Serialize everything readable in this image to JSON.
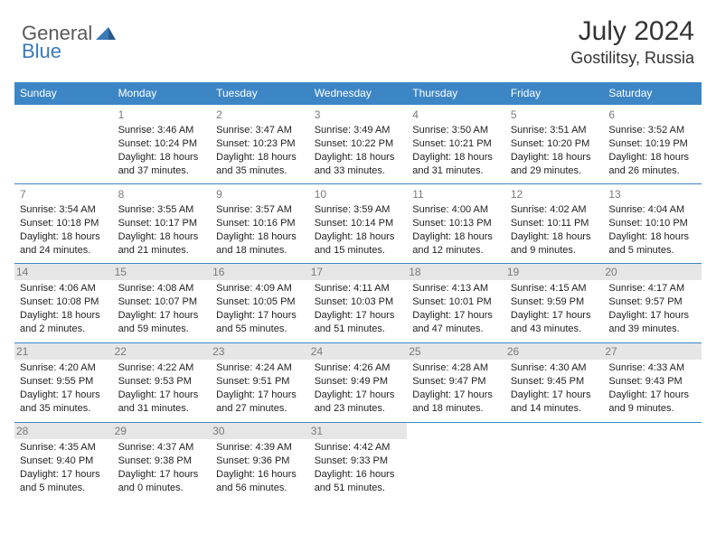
{
  "logo": {
    "part1": "General",
    "part2": "Blue"
  },
  "title": "July 2024",
  "location": "Gostilitsy, Russia",
  "colors": {
    "header_bg": "#3d86c6",
    "header_text": "#ffffff",
    "logo_gray": "#5a5a5a",
    "logo_blue": "#3a7ab8",
    "border": "#3d86c6",
    "daynum": "#7a7a7a",
    "body_text": "#222222",
    "highlight_bg": "#e6e6e6"
  },
  "weekday_headers": [
    "Sunday",
    "Monday",
    "Tuesday",
    "Wednesday",
    "Thursday",
    "Friday",
    "Saturday"
  ],
  "weeks": [
    [
      null,
      {
        "d": "1",
        "sr": "3:46 AM",
        "ss": "10:24 PM",
        "dl": "18 hours and 37 minutes."
      },
      {
        "d": "2",
        "sr": "3:47 AM",
        "ss": "10:23 PM",
        "dl": "18 hours and 35 minutes."
      },
      {
        "d": "3",
        "sr": "3:49 AM",
        "ss": "10:22 PM",
        "dl": "18 hours and 33 minutes."
      },
      {
        "d": "4",
        "sr": "3:50 AM",
        "ss": "10:21 PM",
        "dl": "18 hours and 31 minutes."
      },
      {
        "d": "5",
        "sr": "3:51 AM",
        "ss": "10:20 PM",
        "dl": "18 hours and 29 minutes."
      },
      {
        "d": "6",
        "sr": "3:52 AM",
        "ss": "10:19 PM",
        "dl": "18 hours and 26 minutes."
      }
    ],
    [
      {
        "d": "7",
        "sr": "3:54 AM",
        "ss": "10:18 PM",
        "dl": "18 hours and 24 minutes."
      },
      {
        "d": "8",
        "sr": "3:55 AM",
        "ss": "10:17 PM",
        "dl": "18 hours and 21 minutes."
      },
      {
        "d": "9",
        "sr": "3:57 AM",
        "ss": "10:16 PM",
        "dl": "18 hours and 18 minutes."
      },
      {
        "d": "10",
        "sr": "3:59 AM",
        "ss": "10:14 PM",
        "dl": "18 hours and 15 minutes."
      },
      {
        "d": "11",
        "sr": "4:00 AM",
        "ss": "10:13 PM",
        "dl": "18 hours and 12 minutes."
      },
      {
        "d": "12",
        "sr": "4:02 AM",
        "ss": "10:11 PM",
        "dl": "18 hours and 9 minutes."
      },
      {
        "d": "13",
        "sr": "4:04 AM",
        "ss": "10:10 PM",
        "dl": "18 hours and 5 minutes."
      }
    ],
    [
      {
        "d": "14",
        "sr": "4:06 AM",
        "ss": "10:08 PM",
        "dl": "18 hours and 2 minutes.",
        "hl": true
      },
      {
        "d": "15",
        "sr": "4:08 AM",
        "ss": "10:07 PM",
        "dl": "17 hours and 59 minutes.",
        "hl": true
      },
      {
        "d": "16",
        "sr": "4:09 AM",
        "ss": "10:05 PM",
        "dl": "17 hours and 55 minutes.",
        "hl": true
      },
      {
        "d": "17",
        "sr": "4:11 AM",
        "ss": "10:03 PM",
        "dl": "17 hours and 51 minutes.",
        "hl": true
      },
      {
        "d": "18",
        "sr": "4:13 AM",
        "ss": "10:01 PM",
        "dl": "17 hours and 47 minutes.",
        "hl": true
      },
      {
        "d": "19",
        "sr": "4:15 AM",
        "ss": "9:59 PM",
        "dl": "17 hours and 43 minutes.",
        "hl": true
      },
      {
        "d": "20",
        "sr": "4:17 AM",
        "ss": "9:57 PM",
        "dl": "17 hours and 39 minutes.",
        "hl": true
      }
    ],
    [
      {
        "d": "21",
        "sr": "4:20 AM",
        "ss": "9:55 PM",
        "dl": "17 hours and 35 minutes.",
        "hl": true
      },
      {
        "d": "22",
        "sr": "4:22 AM",
        "ss": "9:53 PM",
        "dl": "17 hours and 31 minutes.",
        "hl": true
      },
      {
        "d": "23",
        "sr": "4:24 AM",
        "ss": "9:51 PM",
        "dl": "17 hours and 27 minutes.",
        "hl": true
      },
      {
        "d": "24",
        "sr": "4:26 AM",
        "ss": "9:49 PM",
        "dl": "17 hours and 23 minutes.",
        "hl": true
      },
      {
        "d": "25",
        "sr": "4:28 AM",
        "ss": "9:47 PM",
        "dl": "17 hours and 18 minutes.",
        "hl": true
      },
      {
        "d": "26",
        "sr": "4:30 AM",
        "ss": "9:45 PM",
        "dl": "17 hours and 14 minutes.",
        "hl": true
      },
      {
        "d": "27",
        "sr": "4:33 AM",
        "ss": "9:43 PM",
        "dl": "17 hours and 9 minutes.",
        "hl": true
      }
    ],
    [
      {
        "d": "28",
        "sr": "4:35 AM",
        "ss": "9:40 PM",
        "dl": "17 hours and 5 minutes.",
        "hl": true
      },
      {
        "d": "29",
        "sr": "4:37 AM",
        "ss": "9:38 PM",
        "dl": "17 hours and 0 minutes.",
        "hl": true
      },
      {
        "d": "30",
        "sr": "4:39 AM",
        "ss": "9:36 PM",
        "dl": "16 hours and 56 minutes.",
        "hl": true
      },
      {
        "d": "31",
        "sr": "4:42 AM",
        "ss": "9:33 PM",
        "dl": "16 hours and 51 minutes.",
        "hl": true
      },
      null,
      null,
      null
    ]
  ],
  "labels": {
    "sunrise": "Sunrise:",
    "sunset": "Sunset:",
    "daylight": "Daylight:"
  }
}
